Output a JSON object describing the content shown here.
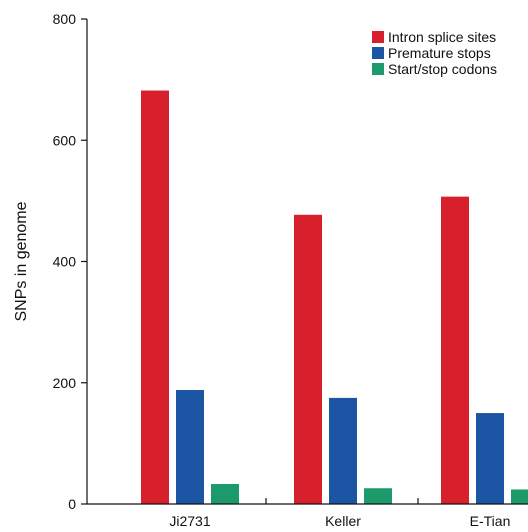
{
  "chart_data": {
    "type": "bar",
    "title": "",
    "xlabel": "",
    "ylabel": "SNPs in genome",
    "ylim": [
      0,
      800
    ],
    "yticks": [
      0,
      200,
      400,
      600,
      800
    ],
    "categories": [
      "Ji2731",
      "Keller",
      "E-Tian"
    ],
    "series": [
      {
        "name": "Intron splice sites",
        "color": "#d7202c",
        "values": [
          682,
          477,
          507
        ]
      },
      {
        "name": "Premature stops",
        "color": "#1c55a3",
        "values": [
          188,
          175,
          150
        ]
      },
      {
        "name": "Start/stop codons",
        "color": "#1d9a6c",
        "values": [
          33,
          26,
          24
        ]
      }
    ],
    "grid": false,
    "legend_position": "top-right"
  }
}
